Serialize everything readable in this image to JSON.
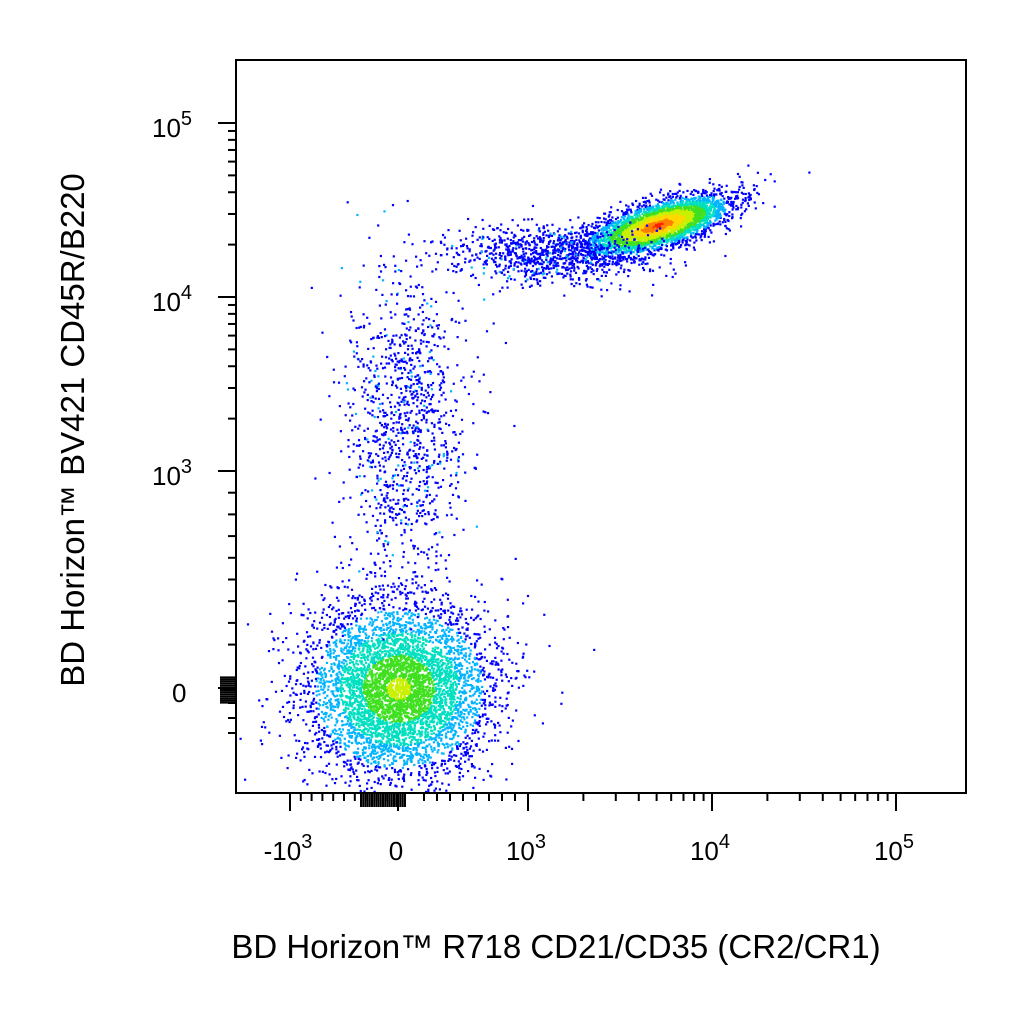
{
  "chart_data": {
    "type": "scatter",
    "style": "flow cytometry pseudocolor density dot plot (biexponential axes)",
    "xlabel": "BD Horizon™ R718 CD21/CD35 (CR2/CR1)",
    "ylabel": "BD Horizon™ BV421 CD45R/B220",
    "x_axis": {
      "scale": "biexponential",
      "ticks": [
        {
          "value": -1000,
          "base": "-10",
          "exp": "3"
        },
        {
          "value": 0,
          "base": "0",
          "exp": ""
        },
        {
          "value": 1000,
          "base": "10",
          "exp": "3"
        },
        {
          "value": 10000,
          "base": "10",
          "exp": "4"
        },
        {
          "value": 100000,
          "base": "10",
          "exp": "5"
        }
      ]
    },
    "y_axis": {
      "scale": "biexponential",
      "ticks": [
        {
          "value": 0,
          "base": "0",
          "exp": ""
        },
        {
          "value": 1000,
          "base": "10",
          "exp": "3"
        },
        {
          "value": 10000,
          "base": "10",
          "exp": "4"
        },
        {
          "value": 100000,
          "base": "10",
          "exp": "5"
        }
      ]
    },
    "grid": false,
    "legend": "none",
    "density_colors": [
      "#0000ff",
      "#00b4ff",
      "#00e0c0",
      "#40e020",
      "#c8f000",
      "#ffd800",
      "#ff8000",
      "#ff2000"
    ],
    "populations": [
      {
        "x_center": 0,
        "y_center": 0,
        "x_spread_decades": 0.45,
        "y_spread_decades": 0.45,
        "count": 5200,
        "peak_color": "#a0f020"
      },
      {
        "x_center": 5000,
        "y_center": 26000,
        "x_spread_decades": 0.35,
        "y_spread_decades": 0.12,
        "count": 3600,
        "peak_color": "#ff2000"
      },
      {
        "x_center": 1300,
        "y_center": 18000,
        "x_spread_decades": 0.5,
        "y_spread_decades": 0.15,
        "count": 900,
        "peak_color": "#0000ff"
      },
      {
        "x_center": 50,
        "y_center": 2000,
        "x_spread_decades": 0.3,
        "y_spread_decades": 0.8,
        "count": 1100,
        "peak_color": "#0000ff"
      }
    ]
  }
}
